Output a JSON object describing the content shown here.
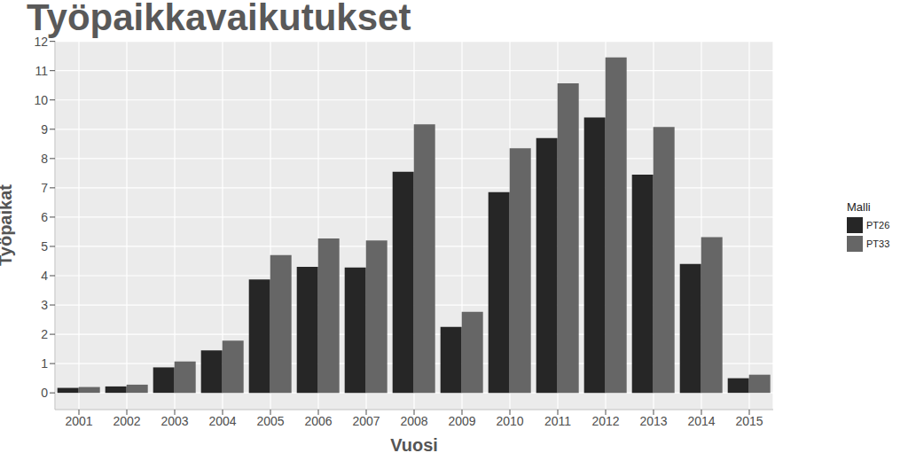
{
  "chart_data": {
    "type": "bar",
    "title": "Työpaikkavaikutukset",
    "x_label": "Vuosi",
    "y_label": "Työpaikat",
    "legend_title": "Malli",
    "categories": [
      "2001",
      "2002",
      "2003",
      "2004",
      "2005",
      "2006",
      "2007",
      "2008",
      "2009",
      "2010",
      "2011",
      "2012",
      "2013",
      "2014",
      "2015"
    ],
    "series": [
      {
        "name": "PT26",
        "color": "#262626",
        "values": [
          0.17,
          0.22,
          0.87,
          1.45,
          3.87,
          4.3,
          4.28,
          7.55,
          2.25,
          6.85,
          8.7,
          9.4,
          7.45,
          4.4,
          0.5
        ]
      },
      {
        "name": "PT33",
        "color": "#666666",
        "values": [
          0.2,
          0.28,
          1.07,
          1.78,
          4.7,
          5.27,
          5.2,
          9.17,
          2.77,
          8.35,
          10.57,
          11.45,
          9.08,
          5.32,
          0.62
        ]
      }
    ],
    "ylim": [
      -0.57,
      12.02
    ],
    "yticks": [
      0,
      1,
      2,
      3,
      4,
      5,
      6,
      7,
      8,
      9,
      10,
      11,
      12
    ],
    "grid": true,
    "legend": "right"
  }
}
